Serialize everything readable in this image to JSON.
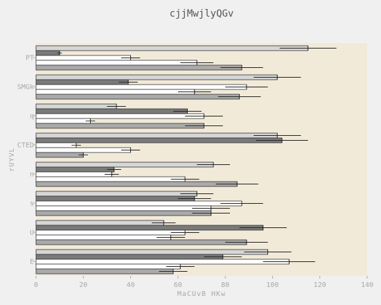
{
  "chart_data": {
    "type": "bar",
    "orientation": "horizontal",
    "title": "cjjMwjlyQGv",
    "xlabel": "MaCUvB HKw",
    "ylabel": "rUYVL",
    "xlim": [
      0,
      140
    ],
    "xticks": [
      0,
      20,
      40,
      60,
      80,
      100,
      120,
      140
    ],
    "grid": false,
    "legend": "none",
    "colors": {
      "background": "#f0f0f0",
      "plot_area": "#f2ead9",
      "bar_outline": "#333333",
      "series": [
        "#d6d6d6",
        "#7a7a7a",
        "#ffffff",
        "#ffffff",
        "#aaaaaa"
      ]
    },
    "categories": [
      "PT",
      "SMGk",
      "q",
      "CTED",
      "n",
      "s",
      "U",
      "E"
    ],
    "series": [
      {
        "values": [
          115,
          102,
          34,
          102,
          75,
          68,
          54,
          98
        ],
        "errors": [
          12,
          10,
          4,
          10,
          7,
          7,
          5,
          10
        ]
      },
      {
        "values": [
          10,
          39,
          64,
          104,
          33,
          67,
          96,
          79
        ],
        "errors": [
          1,
          4,
          6,
          11,
          3,
          7,
          10,
          8
        ]
      },
      {
        "values": [
          40,
          89,
          71,
          17,
          32,
          87,
          63,
          107
        ],
        "errors": [
          4,
          9,
          8,
          2,
          3,
          9,
          6,
          11
        ]
      },
      {
        "values": [
          68,
          67,
          23,
          40,
          63,
          74,
          57,
          61
        ],
        "errors": [
          7,
          7,
          2,
          4,
          6,
          8,
          6,
          6
        ]
      },
      {
        "values": [
          87,
          86,
          71,
          20,
          85,
          74,
          89,
          58
        ],
        "errors": [
          9,
          9,
          8,
          2,
          9,
          8,
          9,
          6
        ]
      }
    ]
  }
}
